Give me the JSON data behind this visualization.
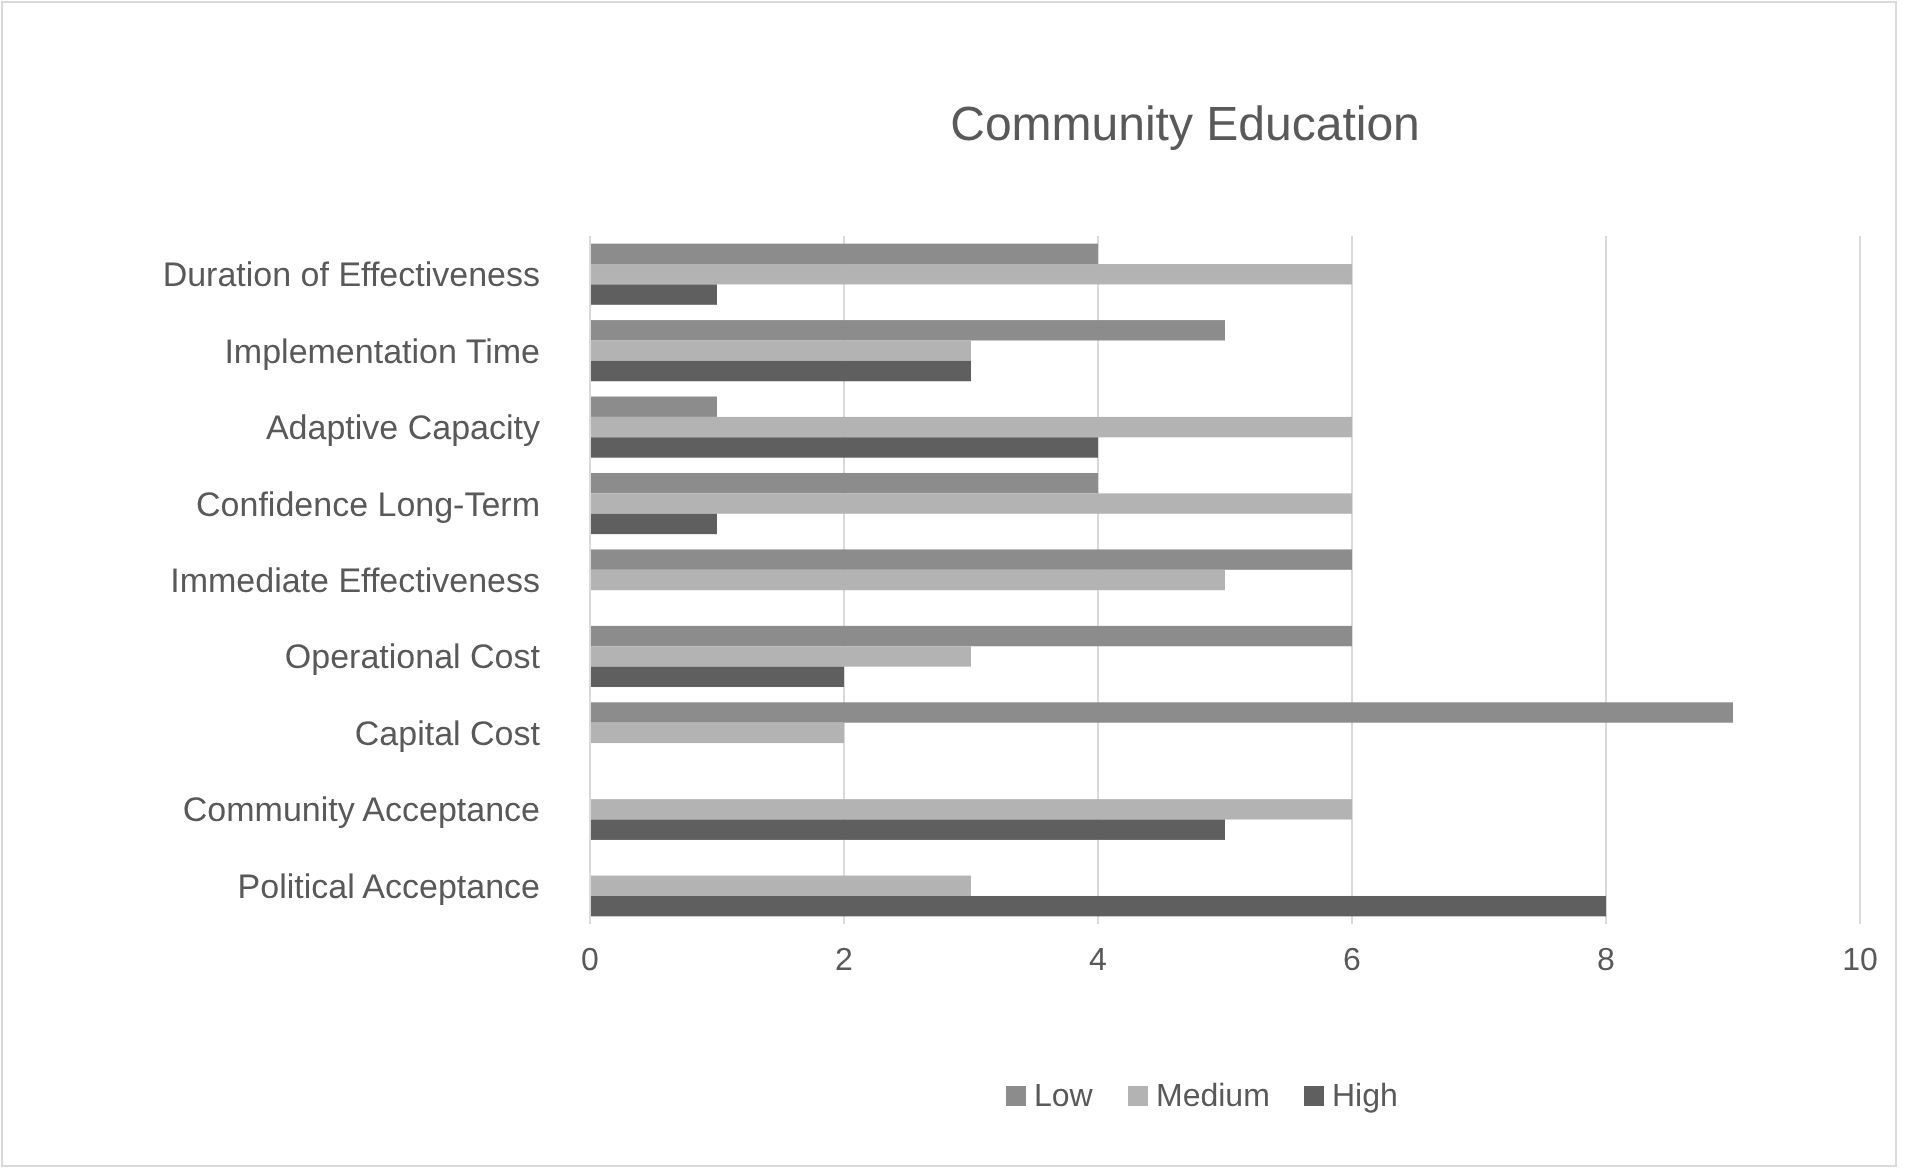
{
  "chart_data": {
    "type": "bar",
    "orientation": "horizontal",
    "title": "Community Education",
    "categories": [
      "Duration of Effectiveness",
      "Implementation Time",
      "Adaptive Capacity",
      "Confidence Long-Term",
      "Immediate Effectiveness",
      "Operational Cost",
      "Capital Cost",
      "Community Acceptance",
      "Political Acceptance"
    ],
    "series": [
      {
        "name": "Low",
        "color": "#8c8c8c",
        "values": [
          4,
          5,
          1,
          4,
          6,
          6,
          9,
          0,
          0
        ]
      },
      {
        "name": "Medium",
        "color": "#b3b3b3",
        "values": [
          6,
          3,
          6,
          6,
          5,
          3,
          2,
          6,
          3
        ]
      },
      {
        "name": "High",
        "color": "#5f5f5f",
        "values": [
          1,
          3,
          4,
          1,
          0,
          2,
          0,
          5,
          8
        ]
      }
    ],
    "xlim": [
      0,
      10
    ],
    "xticks": [
      0,
      2,
      4,
      6,
      8,
      10
    ],
    "grid": "x",
    "legend": "bottom"
  }
}
